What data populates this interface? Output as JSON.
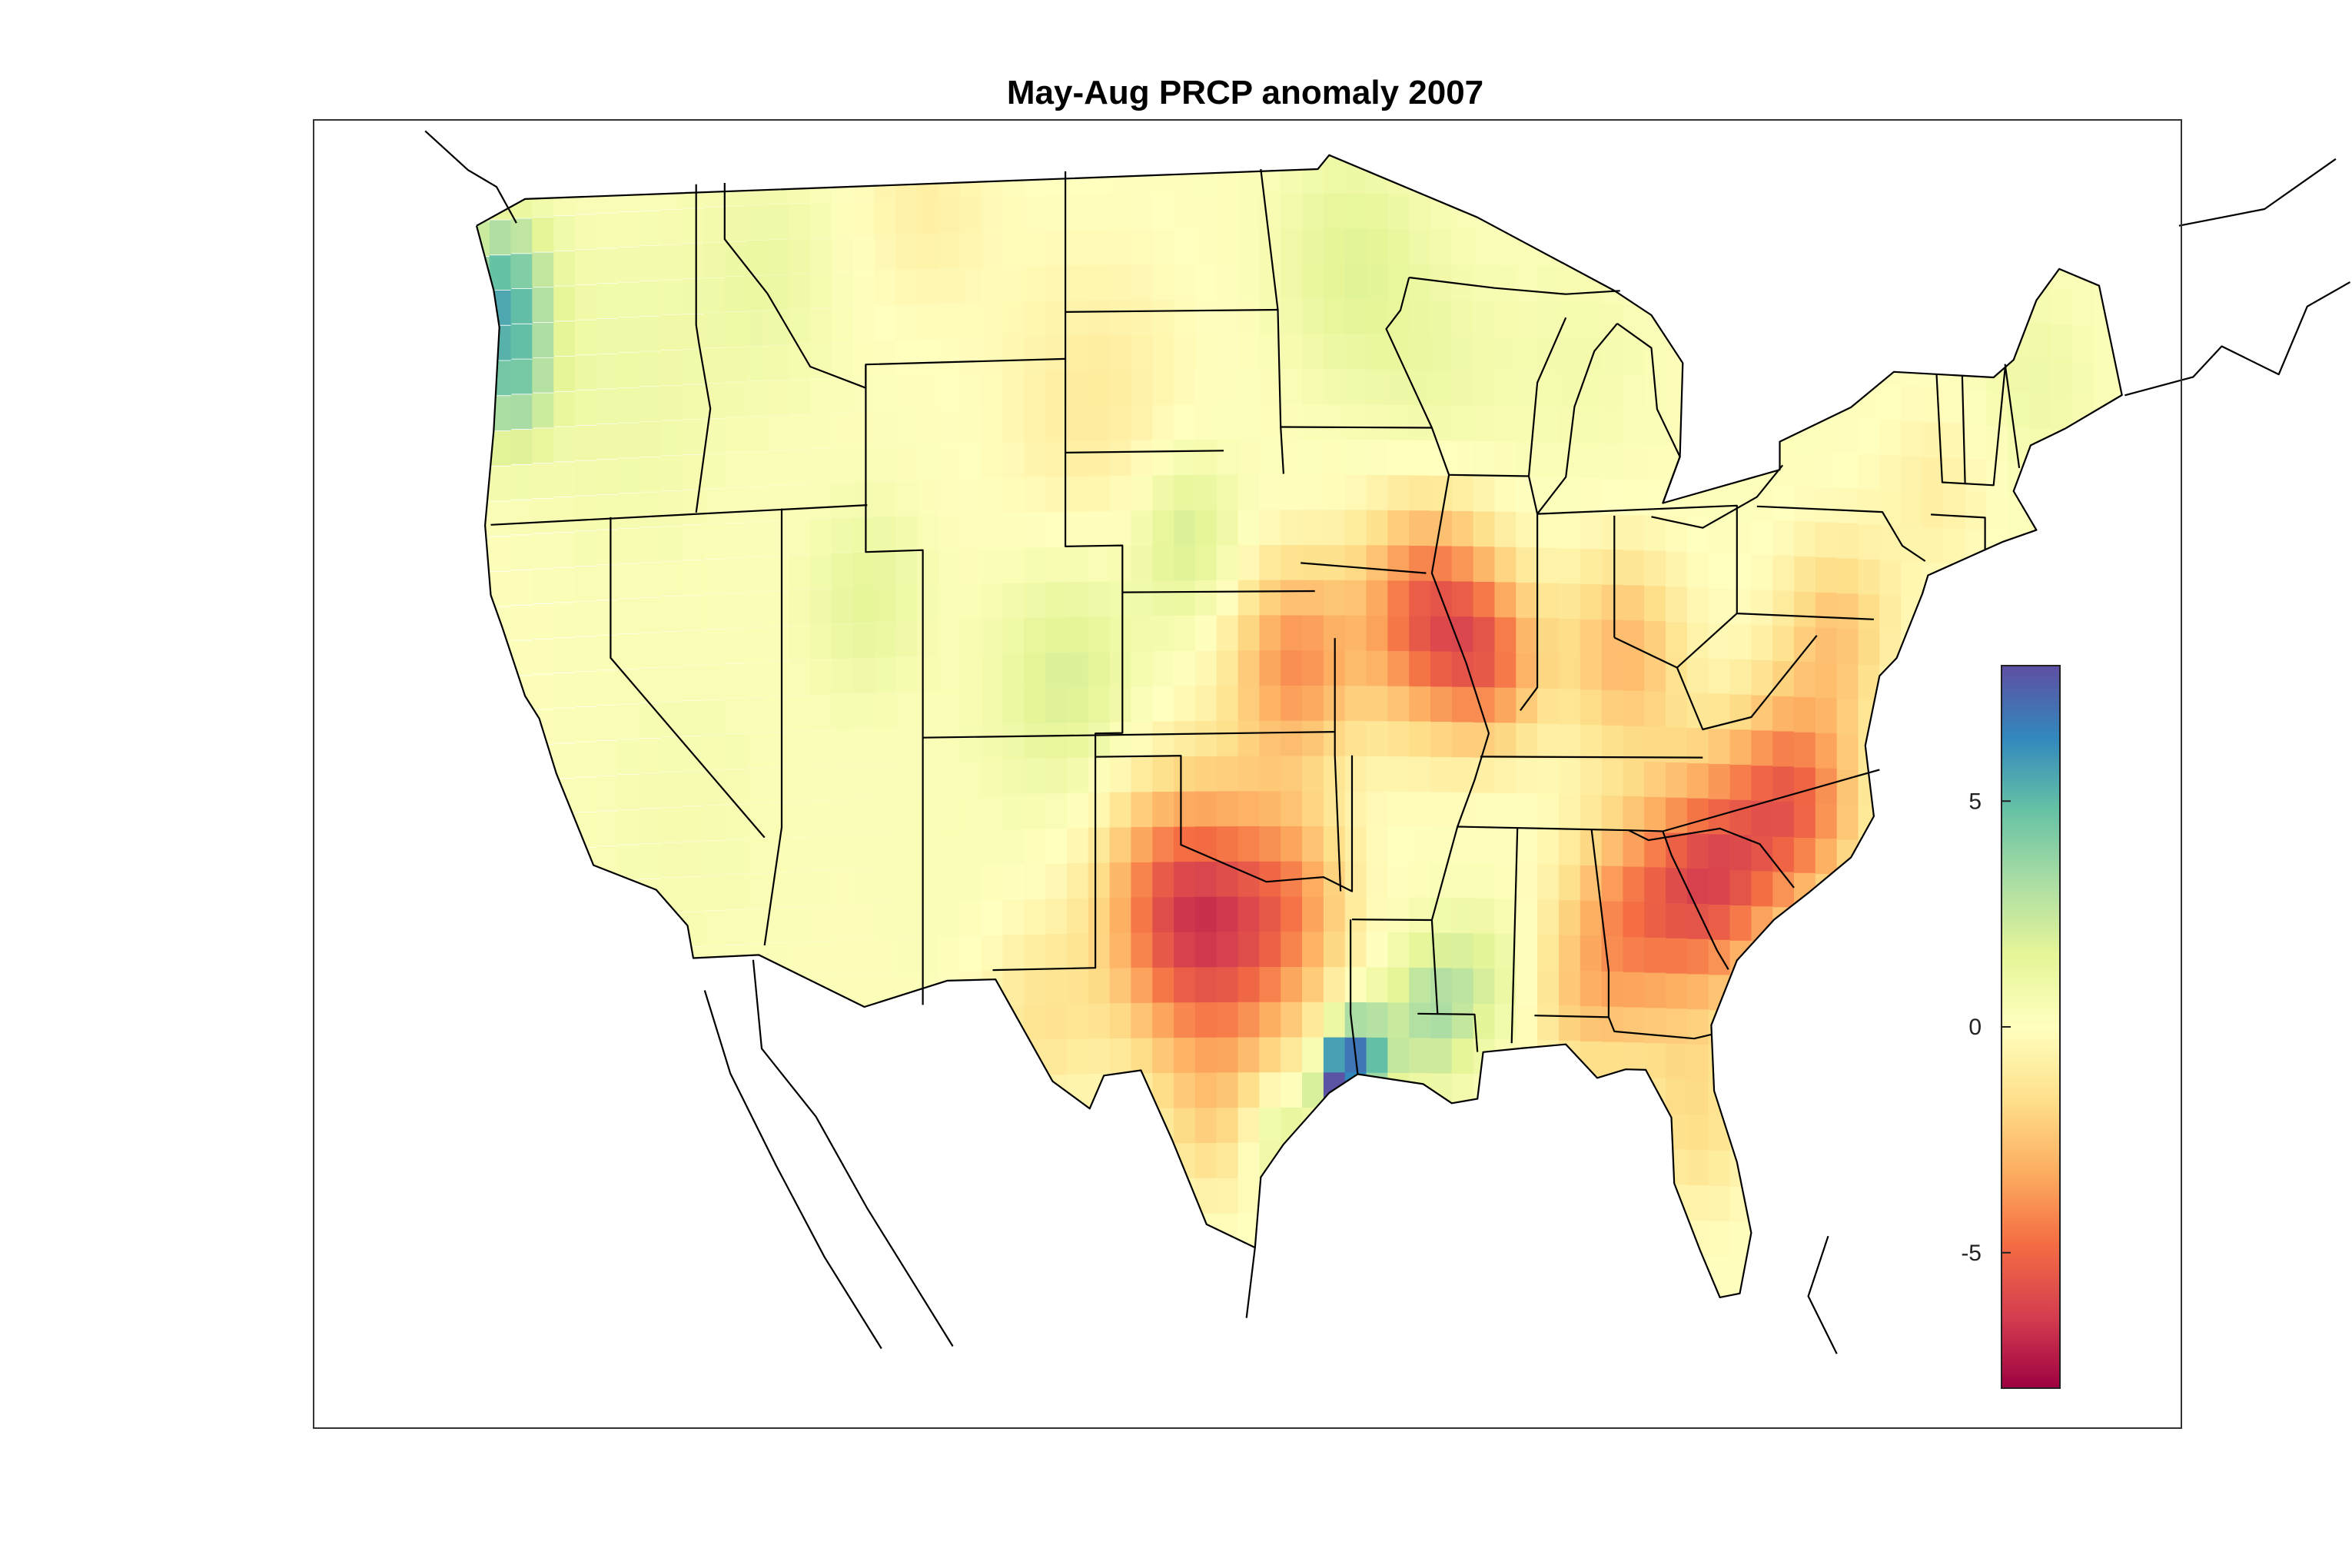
{
  "title": "May-Aug PRCP anomaly 2007",
  "colorbar": {
    "ticks": [
      {
        "value": 5,
        "label": "5"
      },
      {
        "value": 0,
        "label": "0"
      },
      {
        "value": -5,
        "label": "-5"
      }
    ],
    "range": [
      -8,
      8
    ],
    "colormap": "spectral",
    "colors": [
      "#9e0142",
      "#d53e4f",
      "#f46d43",
      "#fdae61",
      "#fee08b",
      "#ffffbf",
      "#e6f598",
      "#abdda4",
      "#66c2a5",
      "#3288bd",
      "#5e4fa2"
    ]
  },
  "chart_data": {
    "type": "heatmap",
    "title": "May-Aug PRCP anomaly 2007",
    "region": "contiguous United States",
    "value_range": [
      -8,
      8
    ],
    "anomaly_areas": [
      {
        "area": "Pacific Northwest coast",
        "value": 3.5
      },
      {
        "area": "Northern Rockies / Great Plains",
        "value": 0.5
      },
      {
        "area": "Colorado / western Kansas",
        "value": 1.5
      },
      {
        "area": "Great Basin / California",
        "value": 0.0
      },
      {
        "area": "Southern Plains (Texas / Oklahoma)",
        "value": -4.5
      },
      {
        "area": "Missouri / Illinois",
        "value": -5.5
      },
      {
        "area": "Southeast (Georgia / Carolinas)",
        "value": -5.5
      },
      {
        "area": "Southeast Texas coast",
        "value": 7.5
      },
      {
        "area": "Louisiana",
        "value": 2.5
      },
      {
        "area": "Ohio Valley",
        "value": -3.0
      },
      {
        "area": "Northeast",
        "value": -1.5
      },
      {
        "area": "Upper Midwest",
        "value": 1.0
      }
    ]
  }
}
